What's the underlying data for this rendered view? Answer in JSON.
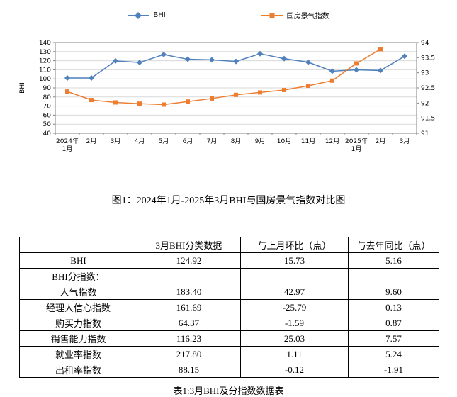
{
  "chart_data": {
    "type": "line",
    "categories": [
      "2024年\n1月",
      "2月",
      "3月",
      "4月",
      "5月",
      "6月",
      "7月",
      "8月",
      "9月",
      "10月",
      "11月",
      "12月",
      "2025年\n1月",
      "2月",
      "3月"
    ],
    "series": [
      {
        "name": "BHI",
        "axis": "left",
        "color": "#4f81bd",
        "marker": "diamond",
        "values": [
          100.9,
          100.9,
          119.76,
          118.0,
          126.8,
          121.6,
          121.0,
          119.2,
          127.7,
          122.3,
          118.3,
          108.5,
          109.9,
          109.19,
          124.92
        ]
      },
      {
        "name": "国房景气指数",
        "axis": "right",
        "color": "#ed7d31",
        "marker": "square",
        "values": [
          92.38,
          92.1,
          92.02,
          91.98,
          91.95,
          92.05,
          92.15,
          92.27,
          92.35,
          92.43,
          92.57,
          92.74,
          93.31,
          93.78,
          null
        ]
      }
    ],
    "left_axis": {
      "title": "BHI",
      "min": 40,
      "max": 140,
      "step": 10
    },
    "right_axis": {
      "min": 91,
      "max": 94,
      "step": 0.5
    },
    "grid": true,
    "legend_position": "top",
    "title": ""
  },
  "figure_caption": "图1：2024年1月-2025年3月BHI与国房景气指数对比图",
  "table": {
    "headers": [
      "",
      "3月BHI分类数据",
      "与上月环比（点）",
      "与去年同比（点）"
    ],
    "rows": [
      [
        "BHI",
        "124.92",
        "15.73",
        "5.16"
      ],
      [
        "BHI分指数：",
        "",
        "",
        ""
      ],
      [
        "人气指数",
        "183.40",
        "42.97",
        "9.60"
      ],
      [
        "经理人信心指数",
        "161.69",
        "-25.79",
        "0.13"
      ],
      [
        "购买力指数",
        "64.37",
        "-1.59",
        "0.87"
      ],
      [
        "销售能力指数",
        "116.23",
        "25.03",
        "7.57"
      ],
      [
        "就业率指数",
        "217.80",
        "1.11",
        "5.24"
      ],
      [
        "出租率指数",
        "88.15",
        "-0.12",
        "-1.91"
      ]
    ]
  },
  "table_caption": "表1:3月BHI及分指数数据表"
}
